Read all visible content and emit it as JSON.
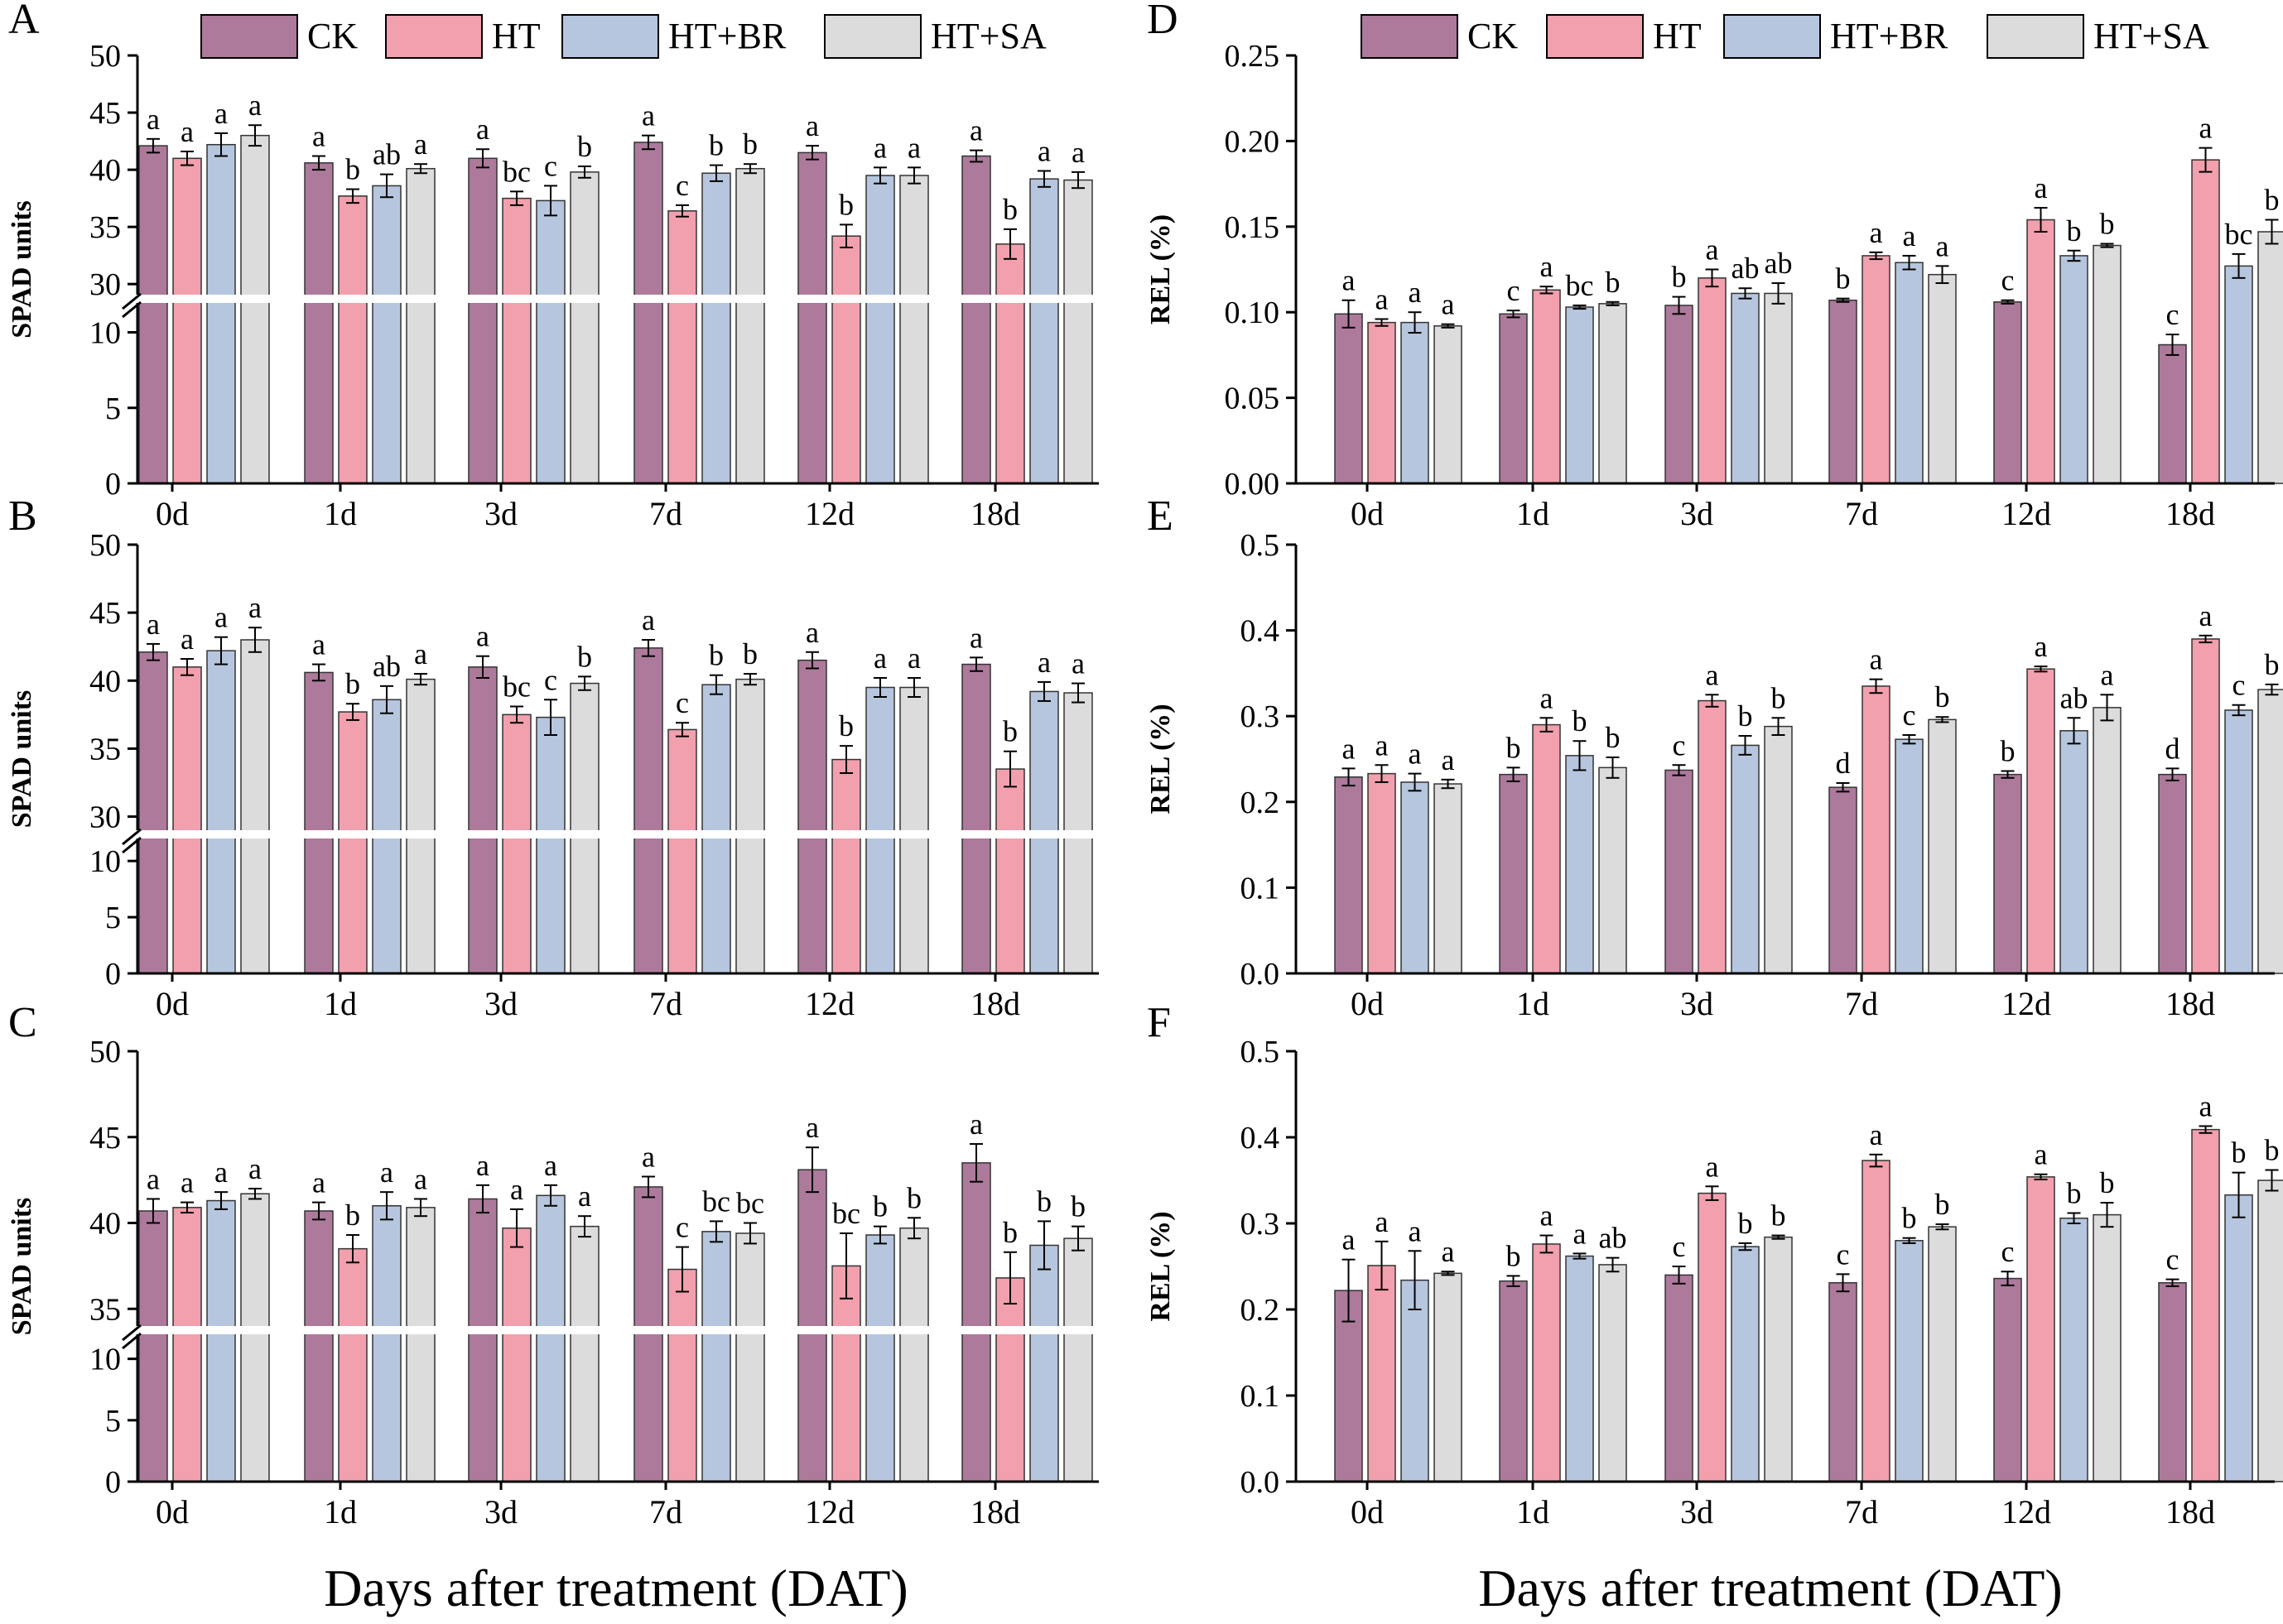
{
  "colors": {
    "CK": "#ad7a9b",
    "HT": "#f2a0ad",
    "HT+BR": "#b6c6de",
    "HT+SA": "#dcdcdc"
  },
  "legend": [
    "CK",
    "HT",
    "HT+BR",
    "HT+SA"
  ],
  "xlabel": "Days after treatment (DAT)",
  "chart_data": [
    {
      "type": "bar",
      "panel": "A",
      "ylabel": "SPAD units",
      "categories": [
        "0d",
        "1d",
        "3d",
        "7d",
        "12d",
        "18d"
      ],
      "y_axis": {
        "broken": true,
        "lower_ticks": [
          "0",
          "5",
          "10"
        ],
        "lower_range": [
          0,
          12
        ],
        "upper_ticks": [
          "30",
          "35",
          "40",
          "45",
          "50"
        ],
        "upper_range": [
          29,
          50
        ]
      },
      "series": [
        {
          "name": "CK",
          "values": [
            42.1,
            40.6,
            41.0,
            42.4,
            41.5,
            41.2
          ],
          "errors": [
            0.6,
            0.6,
            0.8,
            0.6,
            0.6,
            0.5
          ],
          "letters": [
            "a",
            "a",
            "a",
            "a",
            "a",
            "a"
          ]
        },
        {
          "name": "HT",
          "values": [
            41.0,
            37.7,
            37.5,
            36.4,
            34.2,
            33.5
          ],
          "errors": [
            0.6,
            0.6,
            0.6,
            0.5,
            1.0,
            1.3
          ],
          "letters": [
            "a",
            "b",
            "bc",
            "c",
            "b",
            "b"
          ]
        },
        {
          "name": "HT+BR",
          "values": [
            42.2,
            38.6,
            37.3,
            39.7,
            39.5,
            39.2
          ],
          "errors": [
            1.0,
            1.0,
            1.3,
            0.7,
            0.7,
            0.7
          ],
          "letters": [
            "a",
            "ab",
            "c",
            "b",
            "a",
            "a"
          ]
        },
        {
          "name": "HT+SA",
          "values": [
            43.0,
            40.1,
            39.8,
            40.1,
            39.5,
            39.1
          ],
          "errors": [
            0.9,
            0.4,
            0.5,
            0.4,
            0.7,
            0.7
          ],
          "letters": [
            "a",
            "a",
            "b",
            "b",
            "a",
            "a"
          ]
        }
      ]
    },
    {
      "type": "bar",
      "panel": "B",
      "ylabel": "SPAD units",
      "categories": [
        "0d",
        "1d",
        "3d",
        "7d",
        "12d",
        "18d"
      ],
      "y_axis": {
        "broken": true,
        "lower_ticks": [
          "0",
          "5",
          "10"
        ],
        "lower_range": [
          0,
          12
        ],
        "upper_ticks": [
          "30",
          "35",
          "40",
          "45",
          "50"
        ],
        "upper_range": [
          29,
          50
        ]
      },
      "series": [
        {
          "name": "CK",
          "values": [
            42.1,
            40.6,
            41.0,
            42.4,
            41.5,
            41.2
          ],
          "errors": [
            0.6,
            0.6,
            0.8,
            0.6,
            0.6,
            0.5
          ],
          "letters": [
            "a",
            "a",
            "a",
            "a",
            "a",
            "a"
          ]
        },
        {
          "name": "HT",
          "values": [
            41.0,
            37.7,
            37.5,
            36.4,
            34.2,
            33.5
          ],
          "errors": [
            0.6,
            0.6,
            0.6,
            0.5,
            1.0,
            1.3
          ],
          "letters": [
            "a",
            "b",
            "bc",
            "c",
            "b",
            "b"
          ]
        },
        {
          "name": "HT+BR",
          "values": [
            42.2,
            38.6,
            37.3,
            39.7,
            39.5,
            39.2
          ],
          "errors": [
            1.0,
            1.0,
            1.3,
            0.7,
            0.7,
            0.7
          ],
          "letters": [
            "a",
            "ab",
            "c",
            "b",
            "a",
            "a"
          ]
        },
        {
          "name": "HT+SA",
          "values": [
            43.0,
            40.1,
            39.8,
            40.1,
            39.5,
            39.1
          ],
          "errors": [
            0.9,
            0.4,
            0.5,
            0.4,
            0.7,
            0.7
          ],
          "letters": [
            "a",
            "a",
            "b",
            "b",
            "a",
            "a"
          ]
        }
      ]
    },
    {
      "type": "bar",
      "panel": "C",
      "ylabel": "SPAD units",
      "categories": [
        "0d",
        "1d",
        "3d",
        "7d",
        "12d",
        "18d"
      ],
      "y_axis": {
        "broken": true,
        "lower_ticks": [
          "0",
          "5",
          "10"
        ],
        "lower_range": [
          0,
          12
        ],
        "upper_ticks": [
          "35",
          "40",
          "45",
          "50"
        ],
        "upper_range": [
          34,
          50
        ]
      },
      "series": [
        {
          "name": "CK",
          "values": [
            40.7,
            40.7,
            41.4,
            42.1,
            43.1,
            43.5
          ],
          "errors": [
            0.7,
            0.5,
            0.8,
            0.6,
            1.3,
            1.1
          ],
          "letters": [
            "a",
            "a",
            "a",
            "a",
            "a",
            "a"
          ]
        },
        {
          "name": "HT",
          "values": [
            40.9,
            38.5,
            39.7,
            37.3,
            37.5,
            36.8
          ],
          "errors": [
            0.3,
            0.8,
            1.1,
            1.3,
            1.9,
            1.5
          ],
          "letters": [
            "a",
            "b",
            "a",
            "c",
            "bc",
            "b"
          ]
        },
        {
          "name": "HT+BR",
          "values": [
            41.3,
            41.0,
            41.6,
            39.5,
            39.3,
            38.7
          ],
          "errors": [
            0.5,
            0.8,
            0.6,
            0.6,
            0.5,
            1.4
          ],
          "letters": [
            "a",
            "a",
            "a",
            "bc",
            "b",
            "b"
          ]
        },
        {
          "name": "HT+SA",
          "values": [
            41.7,
            40.9,
            39.8,
            39.4,
            39.7,
            39.1
          ],
          "errors": [
            0.3,
            0.5,
            0.6,
            0.6,
            0.6,
            0.7
          ],
          "letters": [
            "a",
            "a",
            "a",
            "bc",
            "b",
            "b"
          ]
        }
      ]
    },
    {
      "type": "bar",
      "panel": "D",
      "ylabel": "REL (%)",
      "categories": [
        "0d",
        "1d",
        "3d",
        "7d",
        "12d",
        "18d"
      ],
      "y_axis": {
        "broken": false,
        "ticks": [
          "0.00",
          "0.05",
          "0.10",
          "0.15",
          "0.20",
          "0.25"
        ],
        "range": [
          0,
          0.25
        ]
      },
      "series": [
        {
          "name": "CK",
          "values": [
            0.099,
            0.099,
            0.104,
            0.107,
            0.106,
            0.081
          ],
          "errors": [
            0.008,
            0.002,
            0.005,
            0.001,
            0.001,
            0.006
          ],
          "letters": [
            "a",
            "c",
            "b",
            "b",
            "c",
            "c"
          ]
        },
        {
          "name": "HT",
          "values": [
            0.094,
            0.113,
            0.12,
            0.133,
            0.154,
            0.189
          ],
          "errors": [
            0.002,
            0.002,
            0.005,
            0.002,
            0.007,
            0.007
          ],
          "letters": [
            "a",
            "a",
            "a",
            "a",
            "a",
            "a"
          ]
        },
        {
          "name": "HT+BR",
          "values": [
            0.094,
            0.103,
            0.111,
            0.129,
            0.133,
            0.127
          ],
          "errors": [
            0.006,
            0.001,
            0.003,
            0.004,
            0.003,
            0.007
          ],
          "letters": [
            "a",
            "bc",
            "ab",
            "a",
            "b",
            "bc"
          ]
        },
        {
          "name": "HT+SA",
          "values": [
            0.092,
            0.105,
            0.111,
            0.122,
            0.139,
            0.147
          ],
          "errors": [
            0.001,
            0.001,
            0.006,
            0.005,
            0.001,
            0.007
          ],
          "letters": [
            "a",
            "b",
            "ab",
            "a",
            "b",
            "b"
          ]
        }
      ]
    },
    {
      "type": "bar",
      "panel": "E",
      "ylabel": "REL (%)",
      "categories": [
        "0d",
        "1d",
        "3d",
        "7d",
        "12d",
        "18d"
      ],
      "y_axis": {
        "broken": false,
        "ticks": [
          "0.0",
          "0.1",
          "0.2",
          "0.3",
          "0.4",
          "0.5"
        ],
        "range": [
          0,
          0.5
        ]
      },
      "series": [
        {
          "name": "CK",
          "values": [
            0.229,
            0.232,
            0.237,
            0.217,
            0.232,
            0.232
          ],
          "errors": [
            0.01,
            0.008,
            0.006,
            0.005,
            0.004,
            0.007
          ],
          "letters": [
            "a",
            "b",
            "c",
            "d",
            "b",
            "d"
          ]
        },
        {
          "name": "HT",
          "values": [
            0.233,
            0.29,
            0.318,
            0.335,
            0.355,
            0.39
          ],
          "errors": [
            0.01,
            0.008,
            0.007,
            0.008,
            0.003,
            0.004
          ],
          "letters": [
            "a",
            "a",
            "a",
            "a",
            "a",
            "a"
          ]
        },
        {
          "name": "HT+BR",
          "values": [
            0.223,
            0.254,
            0.266,
            0.273,
            0.283,
            0.307
          ],
          "errors": [
            0.01,
            0.017,
            0.011,
            0.005,
            0.015,
            0.006
          ],
          "letters": [
            "a",
            "b",
            "b",
            "c",
            "ab",
            "c"
          ]
        },
        {
          "name": "HT+SA",
          "values": [
            0.221,
            0.24,
            0.288,
            0.296,
            0.31,
            0.331
          ],
          "errors": [
            0.005,
            0.012,
            0.01,
            0.003,
            0.015,
            0.006
          ],
          "letters": [
            "a",
            "b",
            "b",
            "b",
            "a",
            "b"
          ]
        }
      ]
    },
    {
      "type": "bar",
      "panel": "F",
      "ylabel": "REL (%)",
      "categories": [
        "0d",
        "1d",
        "3d",
        "7d",
        "12d",
        "18d"
      ],
      "y_axis": {
        "broken": false,
        "ticks": [
          "0.0",
          "0.1",
          "0.2",
          "0.3",
          "0.4",
          "0.5"
        ],
        "range": [
          0,
          0.5
        ]
      },
      "series": [
        {
          "name": "CK",
          "values": [
            0.222,
            0.233,
            0.24,
            0.231,
            0.236,
            0.231
          ],
          "errors": [
            0.036,
            0.006,
            0.01,
            0.01,
            0.008,
            0.004
          ],
          "letters": [
            "a",
            "b",
            "c",
            "c",
            "c",
            "c"
          ]
        },
        {
          "name": "HT",
          "values": [
            0.251,
            0.276,
            0.335,
            0.373,
            0.354,
            0.409
          ],
          "errors": [
            0.028,
            0.01,
            0.008,
            0.007,
            0.003,
            0.004
          ],
          "letters": [
            "a",
            "a",
            "a",
            "a",
            "a",
            "a"
          ]
        },
        {
          "name": "HT+BR",
          "values": [
            0.234,
            0.262,
            0.273,
            0.28,
            0.306,
            0.333
          ],
          "errors": [
            0.034,
            0.003,
            0.004,
            0.003,
            0.006,
            0.026
          ],
          "letters": [
            "a",
            "a",
            "b",
            "b",
            "b",
            "b"
          ]
        },
        {
          "name": "HT+SA",
          "values": [
            0.242,
            0.252,
            0.284,
            0.296,
            0.31,
            0.35
          ],
          "errors": [
            0.002,
            0.008,
            0.002,
            0.003,
            0.014,
            0.012
          ],
          "letters": [
            "a",
            "ab",
            "b",
            "b",
            "b",
            "b"
          ]
        }
      ]
    }
  ]
}
